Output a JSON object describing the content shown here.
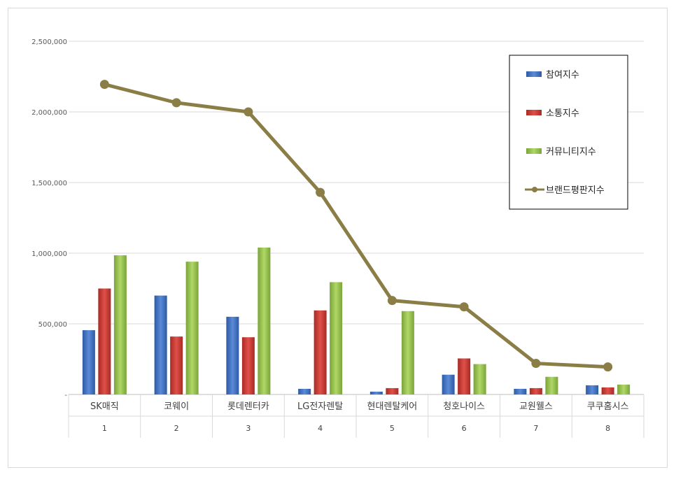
{
  "chart_data": {
    "type": "bar",
    "title": "",
    "xlabel": "",
    "ylabel": "",
    "ylim": [
      0,
      2500000
    ],
    "yticks": [
      0,
      500000,
      1000000,
      1500000,
      2000000,
      2500000
    ],
    "ytick_labels": [
      "-",
      "500,000",
      "1,000,000",
      "1,500,000",
      "2,000,000",
      "2,500,000"
    ],
    "grid": true,
    "legend_position": "top-right",
    "categories": [
      "SK매직",
      "코웨이",
      "롯데렌터카",
      "LG전자렌탈",
      "현대렌탈케어",
      "청호나이스",
      "교원웰스",
      "쿠쿠홈시스"
    ],
    "category_index": [
      "1",
      "2",
      "3",
      "4",
      "5",
      "6",
      "7",
      "8"
    ],
    "series": [
      {
        "name": "참여지수",
        "type": "bar",
        "color": "#4472c4",
        "values": [
          455000,
          700000,
          550000,
          40000,
          20000,
          140000,
          40000,
          65000
        ]
      },
      {
        "name": "소통지수",
        "type": "bar",
        "color": "#c0392b",
        "values": [
          750000,
          410000,
          405000,
          595000,
          45000,
          255000,
          45000,
          50000
        ]
      },
      {
        "name": "커뮤니티지수",
        "type": "bar",
        "color": "#92c045",
        "values": [
          985000,
          940000,
          1040000,
          795000,
          590000,
          215000,
          125000,
          70000
        ]
      },
      {
        "name": "브랜드평판지수",
        "type": "line",
        "color": "#8a7d45",
        "values": [
          2195000,
          2065000,
          2000000,
          1430000,
          665000,
          620000,
          220000,
          195000
        ]
      }
    ]
  }
}
